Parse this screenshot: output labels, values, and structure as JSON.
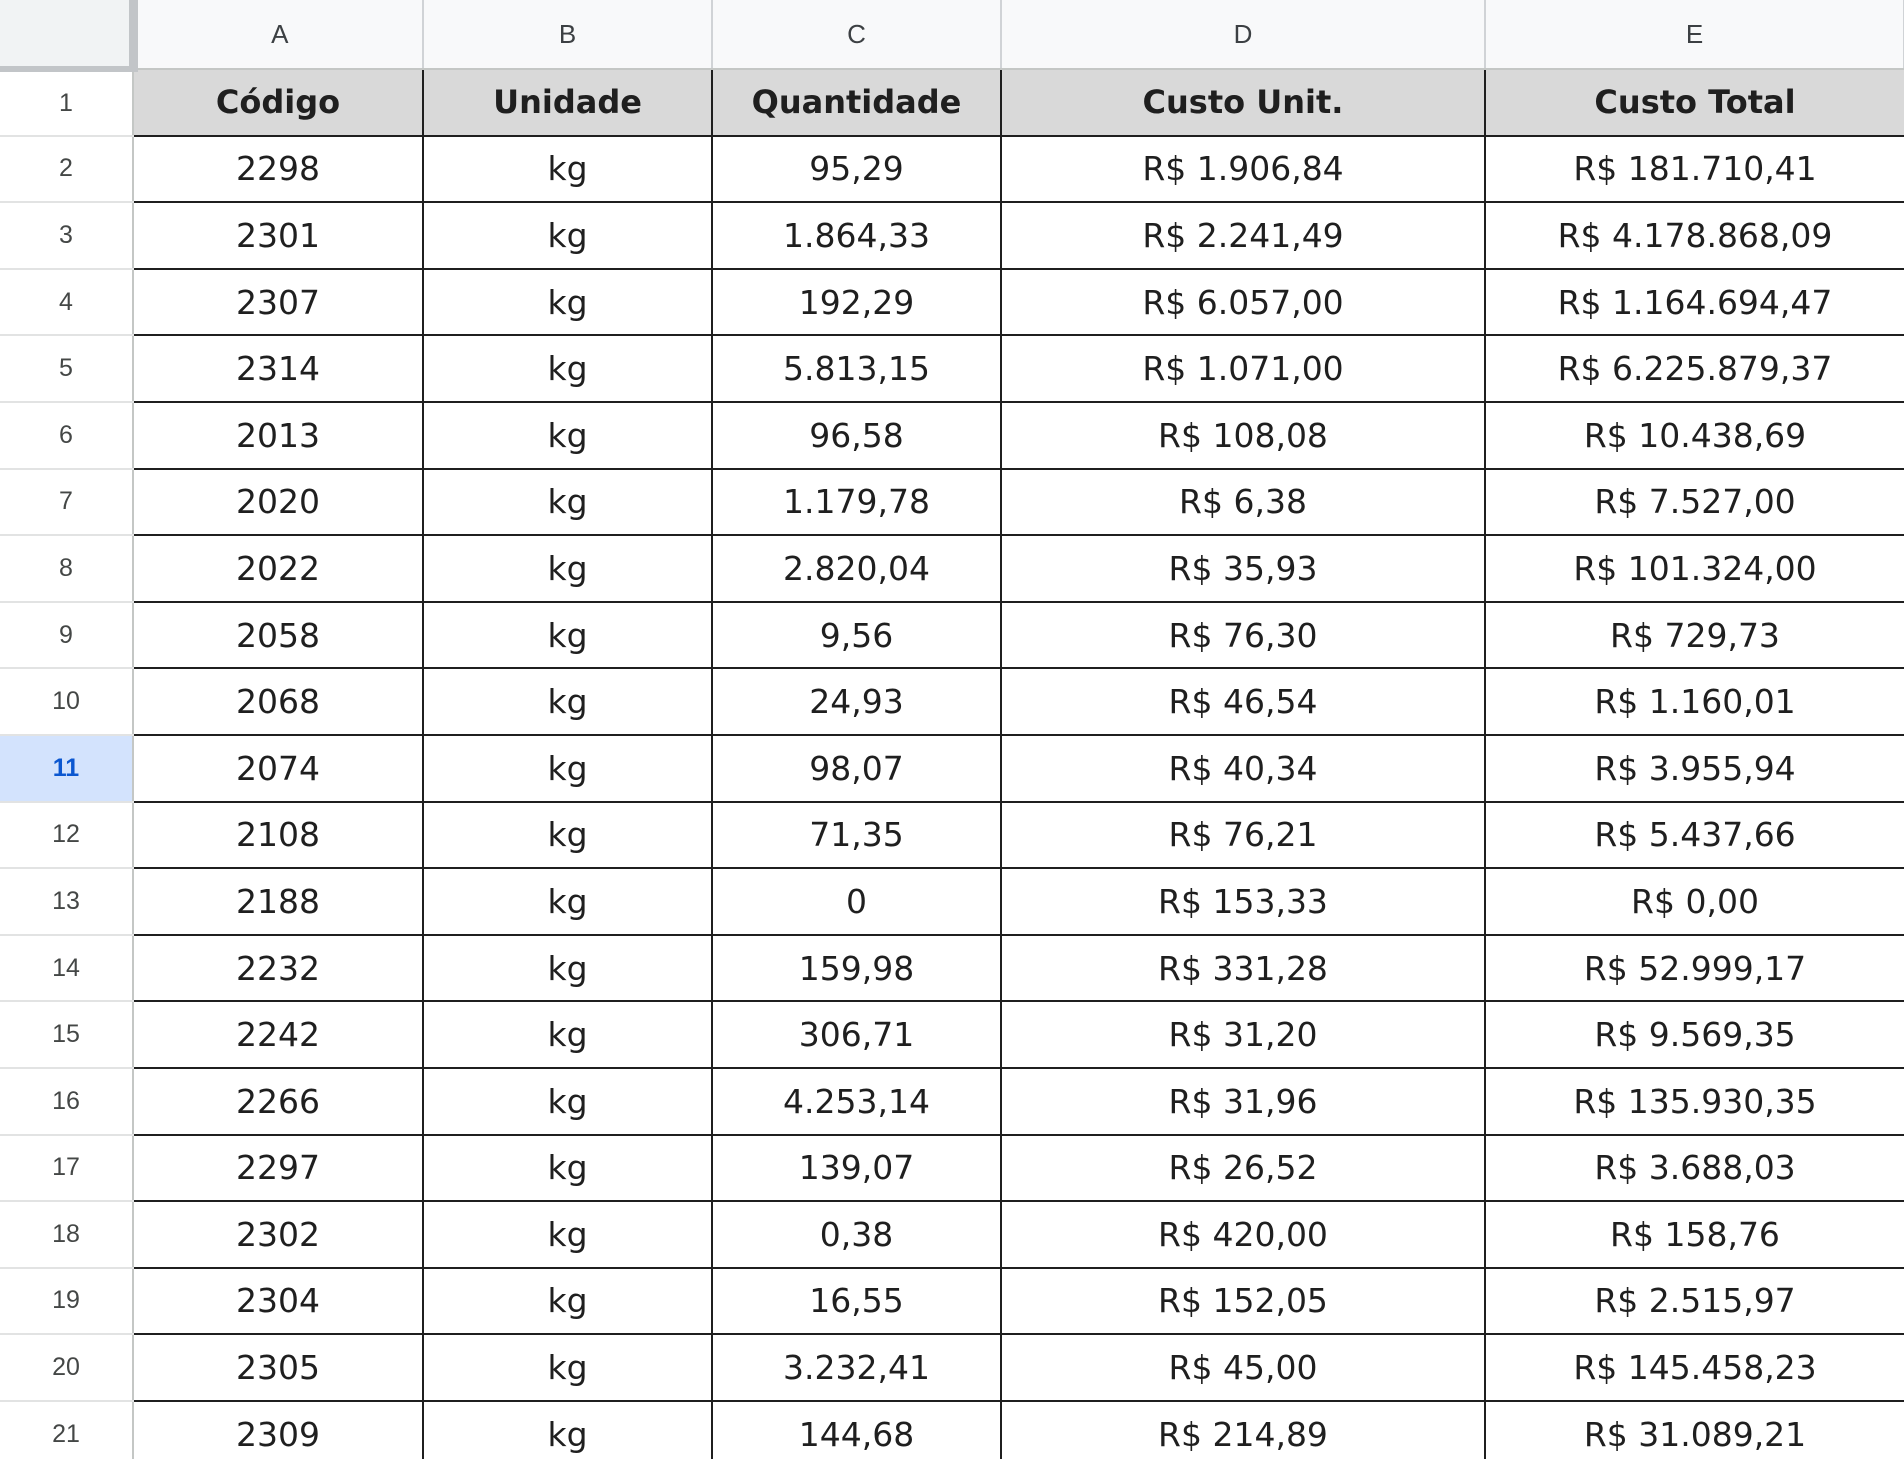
{
  "columns": [
    "A",
    "B",
    "C",
    "D",
    "E"
  ],
  "selected_row": "11",
  "rows": [
    {
      "num": "1",
      "cells": [
        "Código",
        "Unidade",
        "Quantidade",
        "Custo Unit.",
        "Custo Total"
      ]
    },
    {
      "num": "2",
      "cells": [
        "2298",
        "kg",
        "95,29",
        "R$ 1.906,84",
        "R$ 181.710,41"
      ]
    },
    {
      "num": "3",
      "cells": [
        "2301",
        "kg",
        "1.864,33",
        "R$ 2.241,49",
        "R$ 4.178.868,09"
      ]
    },
    {
      "num": "4",
      "cells": [
        "2307",
        "kg",
        "192,29",
        "R$ 6.057,00",
        "R$ 1.164.694,47"
      ]
    },
    {
      "num": "5",
      "cells": [
        "2314",
        "kg",
        "5.813,15",
        "R$ 1.071,00",
        "R$ 6.225.879,37"
      ]
    },
    {
      "num": "6",
      "cells": [
        "2013",
        "kg",
        "96,58",
        "R$ 108,08",
        "R$ 10.438,69"
      ]
    },
    {
      "num": "7",
      "cells": [
        "2020",
        "kg",
        "1.179,78",
        "R$ 6,38",
        "R$ 7.527,00"
      ]
    },
    {
      "num": "8",
      "cells": [
        "2022",
        "kg",
        "2.820,04",
        "R$ 35,93",
        "R$ 101.324,00"
      ]
    },
    {
      "num": "9",
      "cells": [
        "2058",
        "kg",
        "9,56",
        "R$ 76,30",
        "R$ 729,73"
      ]
    },
    {
      "num": "10",
      "cells": [
        "2068",
        "kg",
        "24,93",
        "R$ 46,54",
        "R$ 1.160,01"
      ]
    },
    {
      "num": "11",
      "cells": [
        "2074",
        "kg",
        "98,07",
        "R$ 40,34",
        "R$ 3.955,94"
      ]
    },
    {
      "num": "12",
      "cells": [
        "2108",
        "kg",
        "71,35",
        "R$ 76,21",
        "R$ 5.437,66"
      ]
    },
    {
      "num": "13",
      "cells": [
        "2188",
        "kg",
        "0",
        "R$ 153,33",
        "R$ 0,00"
      ]
    },
    {
      "num": "14",
      "cells": [
        "2232",
        "kg",
        "159,98",
        "R$ 331,28",
        "R$ 52.999,17"
      ]
    },
    {
      "num": "15",
      "cells": [
        "2242",
        "kg",
        "306,71",
        "R$ 31,20",
        "R$ 9.569,35"
      ]
    },
    {
      "num": "16",
      "cells": [
        "2266",
        "kg",
        "4.253,14",
        "R$ 31,96",
        "R$ 135.930,35"
      ]
    },
    {
      "num": "17",
      "cells": [
        "2297",
        "kg",
        "139,07",
        "R$ 26,52",
        "R$ 3.688,03"
      ]
    },
    {
      "num": "18",
      "cells": [
        "2302",
        "kg",
        "0,38",
        "R$ 420,00",
        "R$ 158,76"
      ]
    },
    {
      "num": "19",
      "cells": [
        "2304",
        "kg",
        "16,55",
        "R$ 152,05",
        "R$ 2.515,97"
      ]
    },
    {
      "num": "20",
      "cells": [
        "2305",
        "kg",
        "3.232,41",
        "R$ 45,00",
        "R$ 145.458,23"
      ]
    },
    {
      "num": "21",
      "cells": [
        "2309",
        "kg",
        "144,68",
        "R$ 214,89",
        "R$ 31.089,21"
      ]
    }
  ]
}
